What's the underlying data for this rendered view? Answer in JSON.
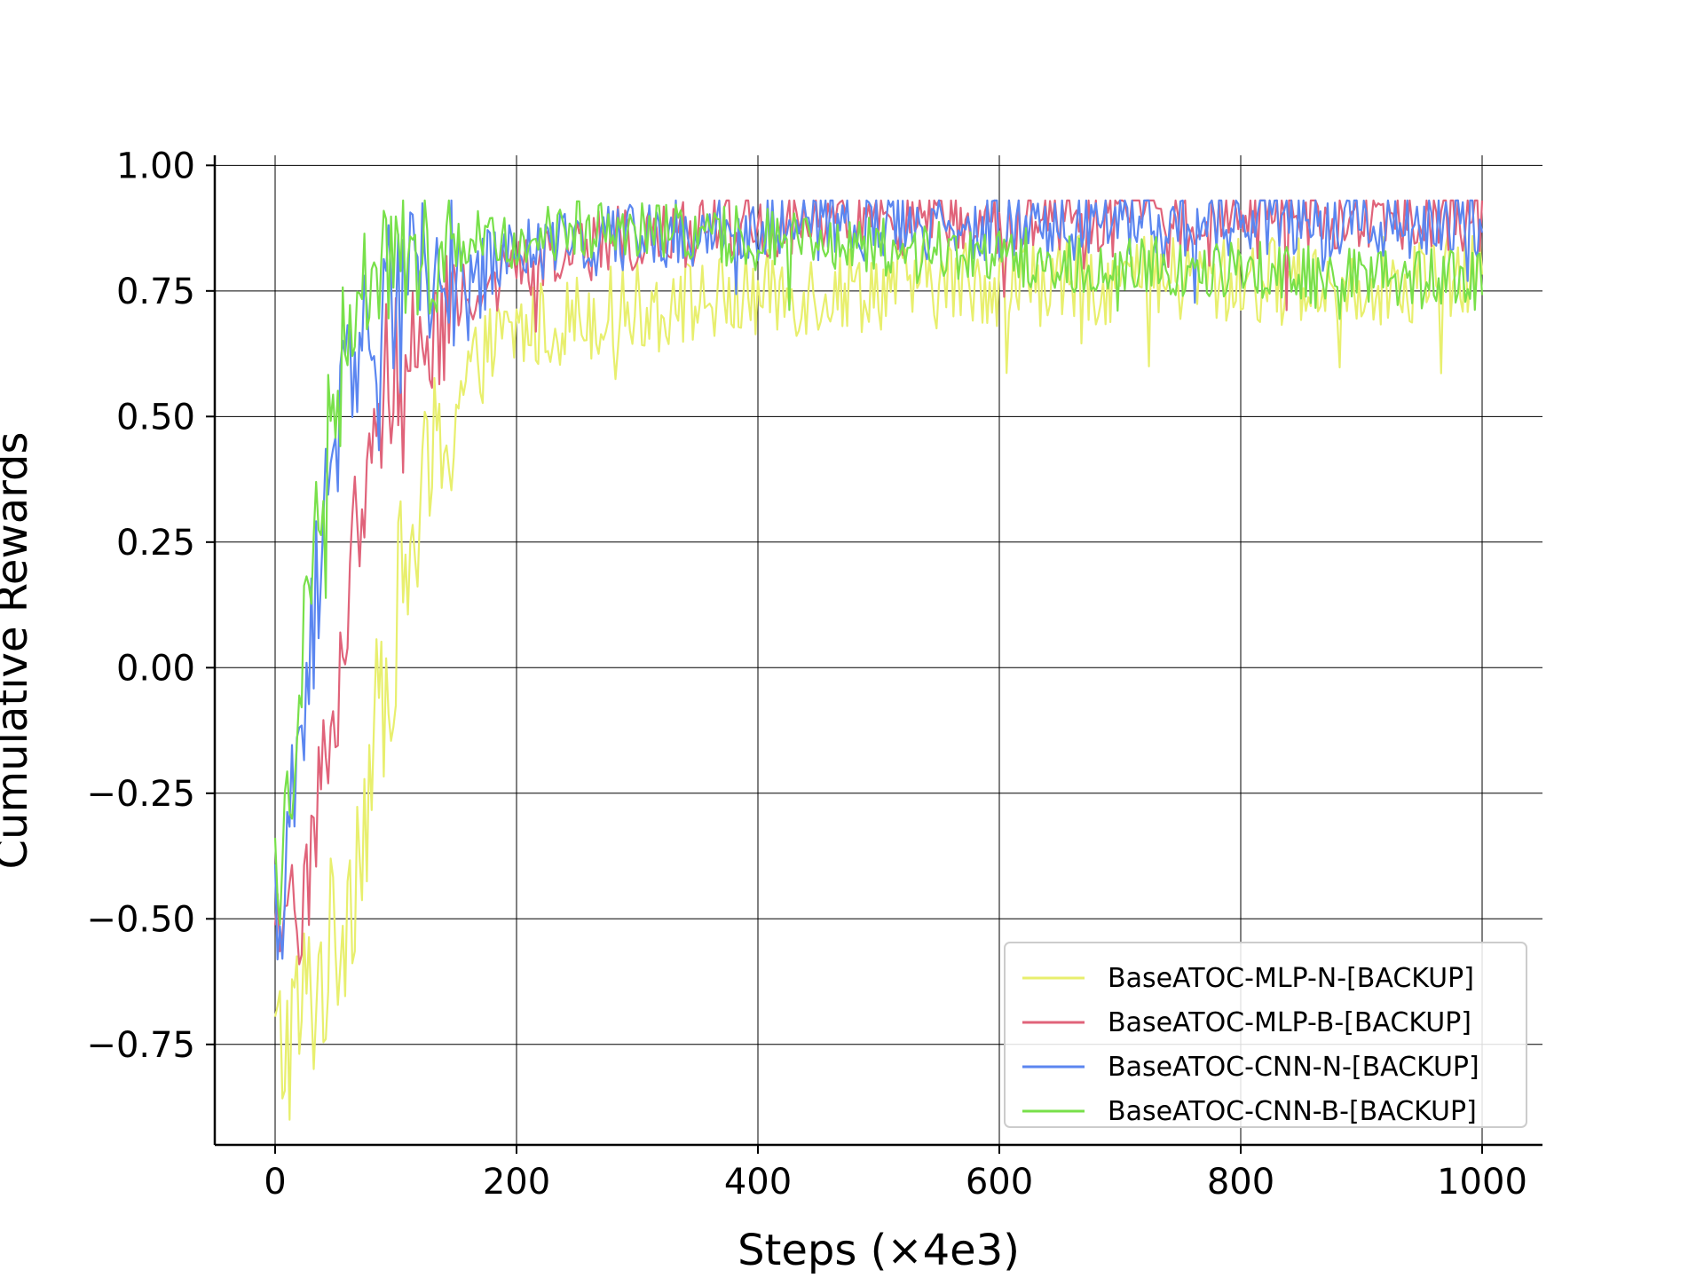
{
  "chart_data": {
    "type": "line",
    "xlabel": "Steps (×4e3)",
    "ylabel": "Cumulative Rewards",
    "xlim": [
      -50,
      1050
    ],
    "ylim": [
      -0.95,
      1.02
    ],
    "xticks": [
      0,
      200,
      400,
      600,
      800,
      1000
    ],
    "xtick_labels": [
      "0",
      "200",
      "400",
      "600",
      "800",
      "1000"
    ],
    "yticks": [
      -0.75,
      -0.5,
      -0.25,
      0.0,
      0.25,
      0.5,
      0.75,
      1.0
    ],
    "ytick_labels": [
      "−0.75",
      "−0.50",
      "−0.25",
      "0.00",
      "0.25",
      "0.50",
      "0.75",
      "1.00"
    ],
    "grid": true,
    "legend_position": "lower-right",
    "x": [
      0,
      10,
      20,
      30,
      40,
      50,
      60,
      70,
      80,
      90,
      100,
      120,
      140,
      160,
      180,
      200,
      250,
      300,
      350,
      400,
      450,
      500,
      600,
      700,
      800,
      900,
      1000
    ],
    "series": [
      {
        "name": "BaseATOC-MLP-N-[BACKUP]",
        "color": "#e8ef6e",
        "values": [
          -0.78,
          -0.74,
          -0.7,
          -0.65,
          -0.6,
          -0.55,
          -0.45,
          -0.33,
          -0.2,
          -0.05,
          0.1,
          0.3,
          0.47,
          0.58,
          0.64,
          0.67,
          0.7,
          0.72,
          0.73,
          0.74,
          0.75,
          0.76,
          0.77,
          0.77,
          0.77,
          0.77,
          0.78
        ],
        "noise": 0.09
      },
      {
        "name": "BaseATOC-MLP-B-[BACKUP]",
        "color": "#e0637a",
        "values": [
          -0.6,
          -0.55,
          -0.45,
          -0.35,
          -0.2,
          -0.05,
          0.15,
          0.35,
          0.48,
          0.56,
          0.61,
          0.67,
          0.71,
          0.74,
          0.77,
          0.79,
          0.83,
          0.86,
          0.87,
          0.88,
          0.89,
          0.89,
          0.89,
          0.9,
          0.9,
          0.9,
          0.9
        ],
        "noise": 0.07
      },
      {
        "name": "BaseATOC-CNN-N-[BACKUP]",
        "color": "#5b86f0",
        "values": [
          -0.5,
          -0.38,
          -0.2,
          0.05,
          0.3,
          0.48,
          0.6,
          0.67,
          0.7,
          0.72,
          0.74,
          0.77,
          0.79,
          0.8,
          0.81,
          0.82,
          0.84,
          0.86,
          0.87,
          0.88,
          0.88,
          0.88,
          0.88,
          0.89,
          0.89,
          0.88,
          0.88
        ],
        "noise": 0.07
      },
      {
        "name": "BaseATOC-CNN-B-[BACKUP]",
        "color": "#78e04a",
        "values": [
          -0.45,
          -0.3,
          -0.05,
          0.22,
          0.42,
          0.57,
          0.68,
          0.75,
          0.79,
          0.81,
          0.82,
          0.83,
          0.84,
          0.85,
          0.86,
          0.86,
          0.87,
          0.87,
          0.86,
          0.86,
          0.85,
          0.84,
          0.82,
          0.8,
          0.79,
          0.78,
          0.77
        ],
        "noise": 0.06
      }
    ]
  }
}
